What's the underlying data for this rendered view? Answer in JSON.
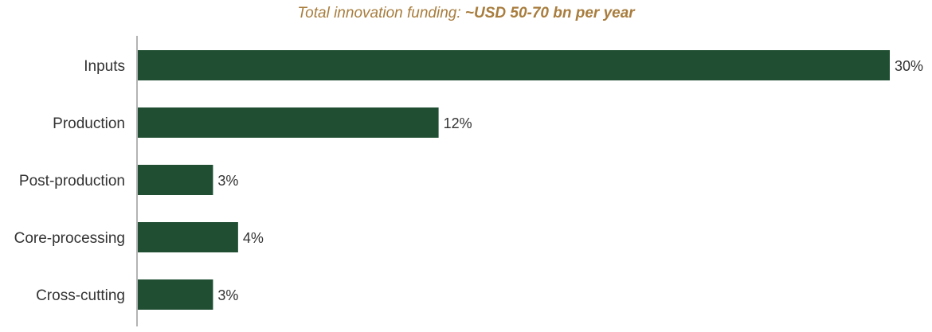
{
  "title_prefix": "Total innovation funding: ",
  "title_emphasis": "~USD 50-70  bn per year",
  "chart_data": {
    "type": "bar",
    "orientation": "horizontal",
    "title": "Total innovation funding: ~USD 50-70  bn per year",
    "categories": [
      "Inputs",
      "Production",
      "Post-production",
      "Core-processing",
      "Cross-cutting"
    ],
    "values": [
      30,
      12,
      3,
      4,
      3
    ],
    "value_labels": [
      "30%",
      "12%",
      "3%",
      "4%",
      "3%"
    ],
    "unit": "%",
    "xlim": [
      0,
      30
    ],
    "grid": false,
    "legend": "none",
    "bar_color": "#1f4e33",
    "title_color": "#a87d3e"
  }
}
